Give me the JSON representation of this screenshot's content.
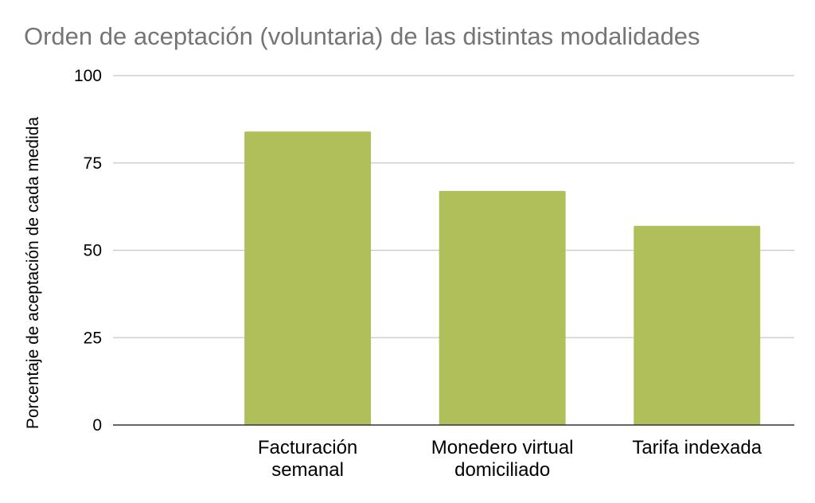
{
  "chart_data": {
    "type": "bar",
    "title": "Orden de aceptación (voluntaria) de las distintas modalidades",
    "xlabel": "",
    "ylabel": "Porcentaje de aceptación de cada medida",
    "categories": [
      [
        "Facturación",
        "semanal"
      ],
      [
        "Monedero virtual",
        "domiciliado"
      ],
      [
        "Tarifa indexada"
      ]
    ],
    "values": [
      84,
      67,
      57
    ],
    "ylim": [
      0,
      100
    ],
    "yticks": [
      "0",
      "25",
      "50",
      "75",
      "100"
    ],
    "grid": true,
    "legend": "none",
    "colors": {
      "bar": "#b1bf5a",
      "grid": "#c8c8c8",
      "axis": "#333333"
    }
  }
}
